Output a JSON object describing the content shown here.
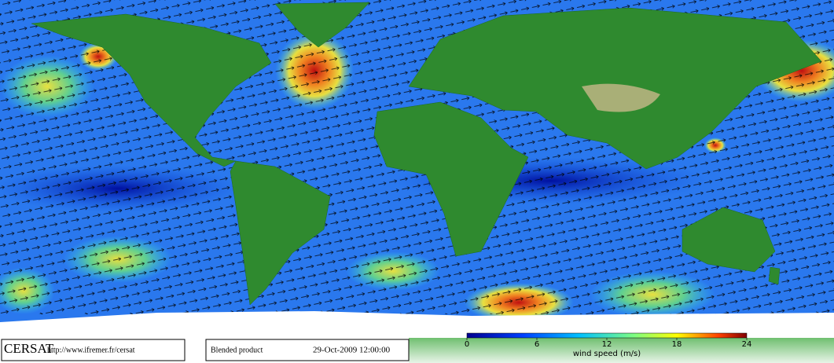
{
  "logo": {
    "name": "CERSAT",
    "url": "http://www.ifremer.fr/cersat"
  },
  "product": {
    "name": "Blended product",
    "timestamp": "29-Oct-2009 12:00:00"
  },
  "colorbar": {
    "label": "wind speed (m/s)",
    "lim": [
      0,
      24
    ],
    "ticks": [
      0,
      6,
      12,
      18,
      24
    ]
  }
}
